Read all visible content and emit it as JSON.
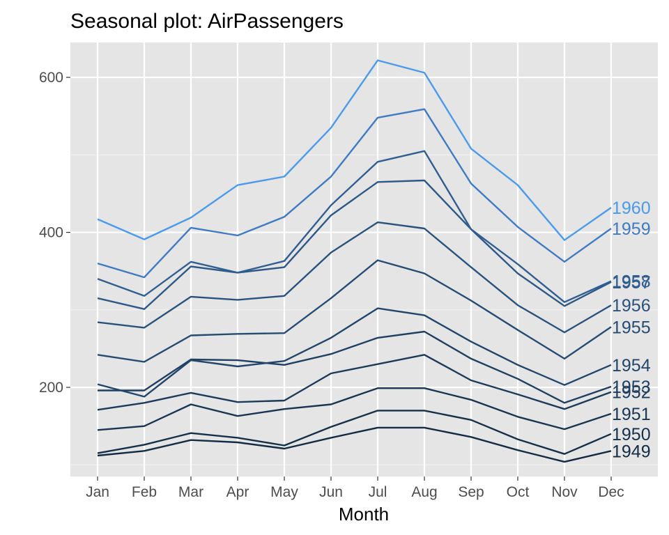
{
  "chart_data": {
    "type": "line",
    "title": "Seasonal plot: AirPassengers",
    "xlabel": "Month",
    "ylabel": "",
    "categories": [
      "Jan",
      "Feb",
      "Mar",
      "Apr",
      "May",
      "Jun",
      "Jul",
      "Aug",
      "Sep",
      "Oct",
      "Nov",
      "Dec"
    ],
    "ylim": [
      85,
      645
    ],
    "yticks": [
      200,
      400,
      600
    ],
    "grid": true,
    "legend": "none",
    "series_labels": "at line end",
    "series": [
      {
        "name": "1949",
        "color": "#132B43",
        "values": [
          112,
          118,
          132,
          129,
          121,
          135,
          148,
          148,
          136,
          119,
          104,
          118
        ]
      },
      {
        "name": "1950",
        "color": "#16304A",
        "values": [
          115,
          126,
          141,
          135,
          125,
          149,
          170,
          170,
          158,
          133,
          114,
          140
        ]
      },
      {
        "name": "1951",
        "color": "#193552",
        "values": [
          145,
          150,
          178,
          163,
          172,
          178,
          199,
          199,
          184,
          162,
          146,
          166
        ]
      },
      {
        "name": "1952",
        "color": "#1C3A5A",
        "values": [
          171,
          180,
          193,
          181,
          183,
          218,
          230,
          242,
          209,
          191,
          172,
          194
        ]
      },
      {
        "name": "1953",
        "color": "#1F4062",
        "values": [
          196,
          196,
          236,
          235,
          229,
          243,
          264,
          272,
          237,
          211,
          180,
          201
        ]
      },
      {
        "name": "1954",
        "color": "#22466B",
        "values": [
          204,
          188,
          235,
          227,
          234,
          264,
          302,
          293,
          259,
          229,
          203,
          229
        ]
      },
      {
        "name": "1955",
        "color": "#264C74",
        "values": [
          242,
          233,
          267,
          269,
          270,
          315,
          364,
          347,
          312,
          274,
          237,
          278
        ]
      },
      {
        "name": "1956",
        "color": "#2A527E",
        "values": [
          284,
          277,
          317,
          313,
          318,
          374,
          413,
          405,
          355,
          306,
          271,
          306
        ]
      },
      {
        "name": "1957",
        "color": "#2D5888",
        "values": [
          315,
          301,
          356,
          348,
          355,
          422,
          465,
          467,
          404,
          347,
          305,
          336
        ]
      },
      {
        "name": "1958",
        "color": "#315E92",
        "values": [
          340,
          318,
          362,
          348,
          363,
          435,
          491,
          505,
          404,
          359,
          310,
          337
        ]
      },
      {
        "name": "1959",
        "color": "#3F7BC4",
        "values": [
          360,
          342,
          406,
          396,
          420,
          472,
          548,
          559,
          463,
          407,
          362,
          405
        ]
      },
      {
        "name": "1960",
        "color": "#4A9AEE",
        "values": [
          417,
          391,
          419,
          461,
          472,
          535,
          622,
          606,
          508,
          461,
          390,
          432
        ]
      }
    ]
  }
}
